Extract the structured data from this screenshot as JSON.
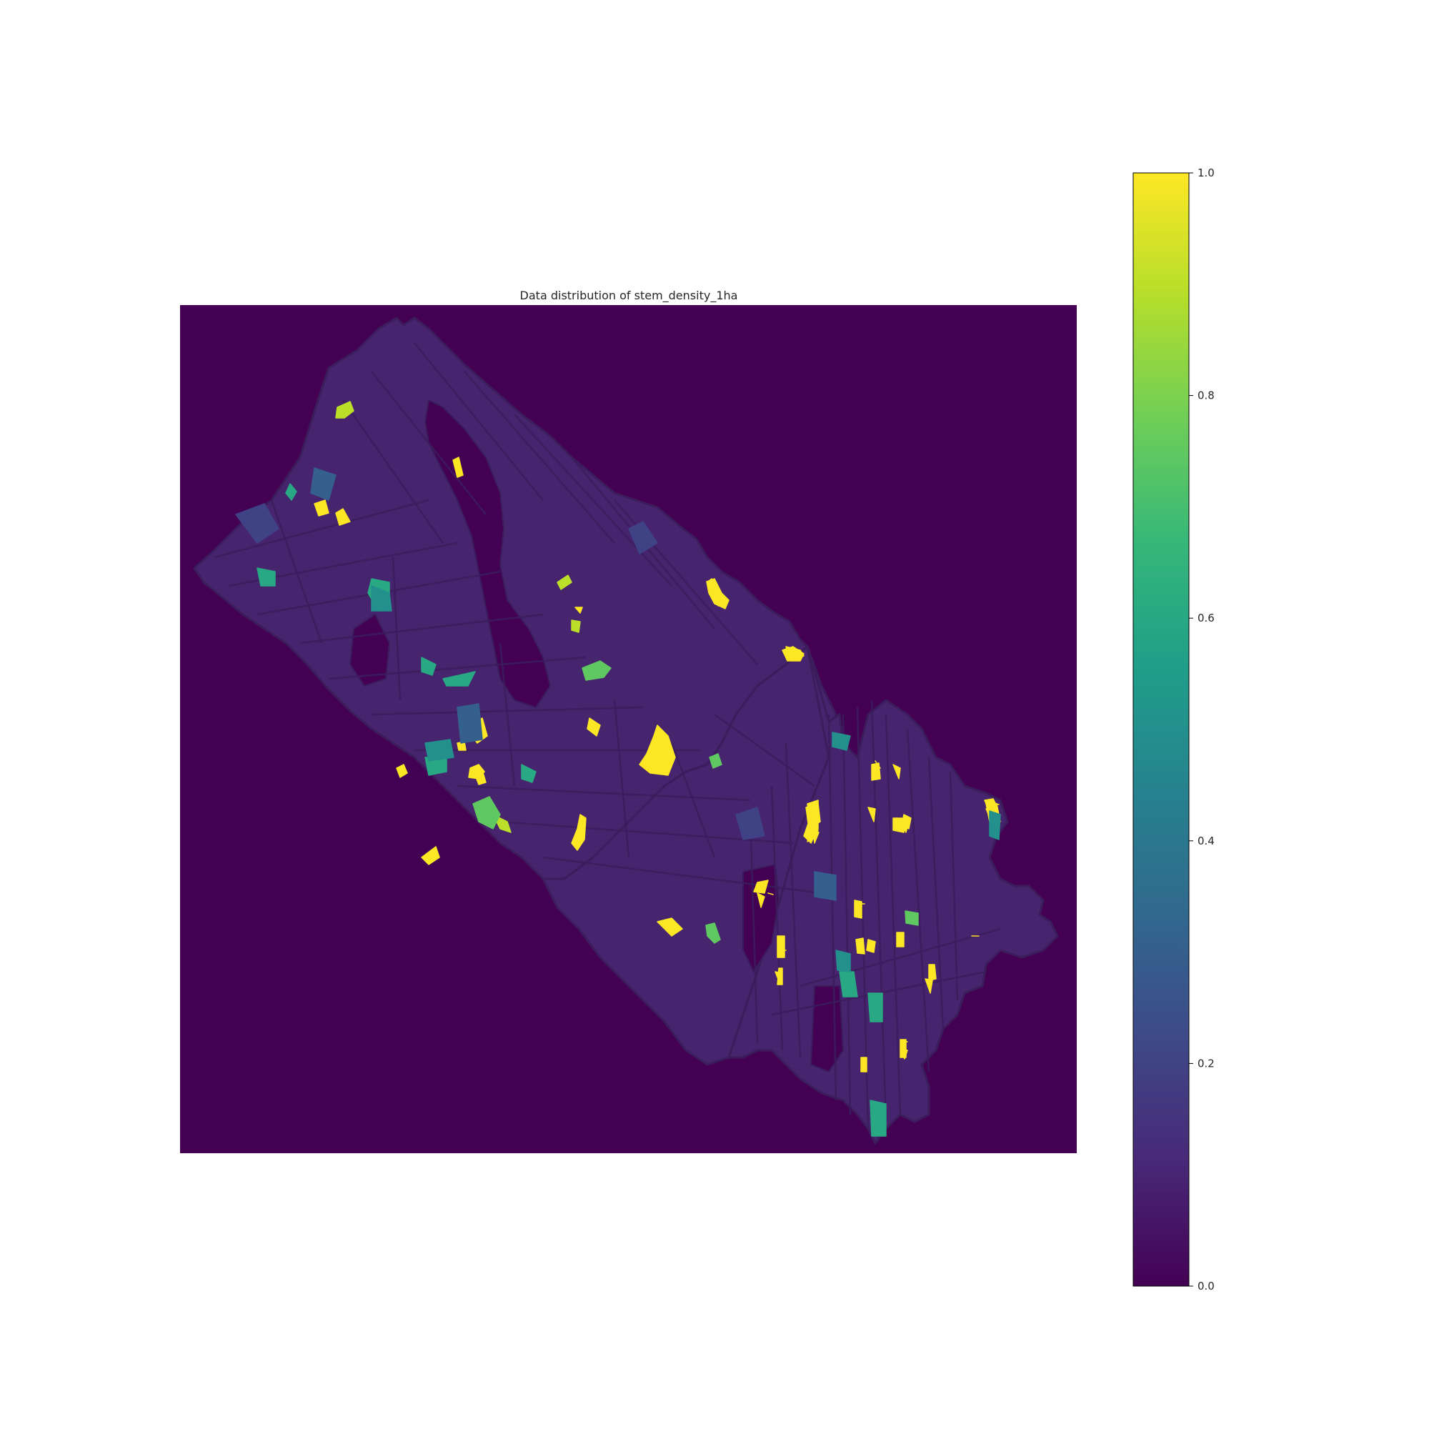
{
  "map": {
    "title": "Data distribution of stem_density_1ha",
    "background_color": "#440154",
    "region_fill": "#46246e",
    "boundary_color": "#3b1d5c"
  },
  "colorbar": {
    "colormap": "viridis",
    "range": [
      0.0,
      1.0
    ],
    "ticks": [
      {
        "value": 0.0,
        "label": "0.0"
      },
      {
        "value": 0.2,
        "label": "0.2"
      },
      {
        "value": 0.4,
        "label": "0.4"
      },
      {
        "value": 0.6,
        "label": "0.6"
      },
      {
        "value": 0.8,
        "label": "0.8"
      },
      {
        "value": 1.0,
        "label": "1.0"
      }
    ],
    "stops": [
      "#440154",
      "#482878",
      "#3e4989",
      "#31688e",
      "#26828e",
      "#1f9e89",
      "#35b779",
      "#6ece58",
      "#b5de2b",
      "#fde725"
    ]
  },
  "highlight_values": [
    1.0,
    0.9,
    0.75,
    0.6,
    0.5,
    0.3,
    0.2
  ]
}
